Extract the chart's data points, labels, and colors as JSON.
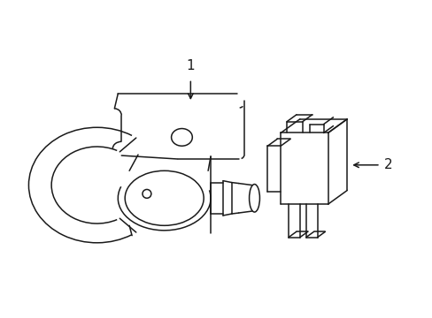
{
  "bg_color": "#ffffff",
  "line_color": "#1a1a1a",
  "line_width": 1.1,
  "fig_width": 4.89,
  "fig_height": 3.6,
  "dpi": 100,
  "label1_text": "1",
  "label2_text": "2"
}
